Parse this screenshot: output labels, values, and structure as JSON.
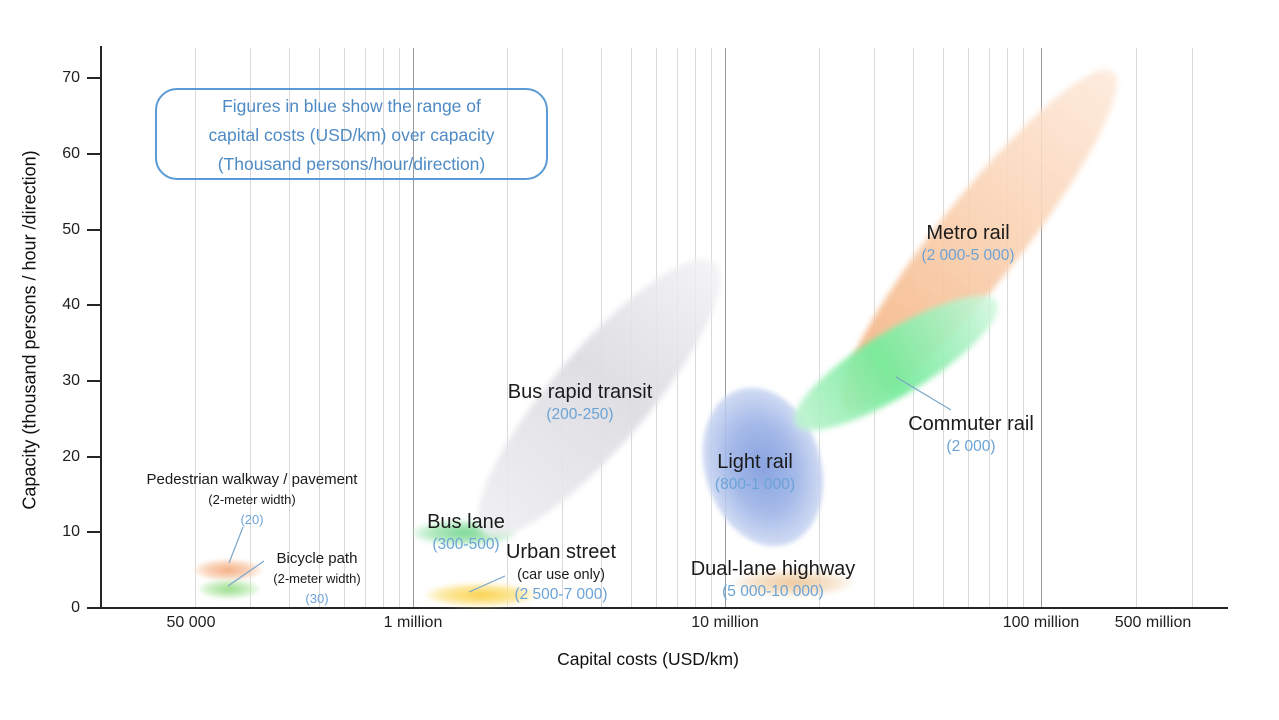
{
  "colors": {
    "accent_blue": "#5B9BD5",
    "metro": "#F5B88A",
    "commuter": "#76EB9B",
    "light_rail": "#829EDE",
    "brt": "#DDDDE2",
    "bus_lane": "#76D590",
    "urban_street": "#FACF43",
    "highway": "#ECC394",
    "pedestrian": "#F4A87A",
    "bicycle": "#94DB84"
  },
  "annotation": {
    "lines": [
      "Figures in blue show the range of",
      "capital costs (USD/km) over capacity",
      "(Thousand persons/hour/direction)"
    ]
  },
  "y_axis": {
    "title": "Capacity (thousand persons / hour /direction)",
    "ticks": [
      "70",
      "60",
      "50",
      "40",
      "30",
      "20",
      "10",
      "0"
    ]
  },
  "x_axis": {
    "title": "Capital costs (USD/km)",
    "ticks": [
      "50 000",
      "1 million",
      "10 million",
      "100 million",
      "500 million"
    ]
  },
  "modes": {
    "metro": {
      "name": "Metro rail",
      "figure": "(2 000-5 000)"
    },
    "commuter": {
      "name": "Commuter rail",
      "figure": "(2 000)"
    },
    "lightrail": {
      "name": "Light rail",
      "figure": "(800-1 000)"
    },
    "brt": {
      "name": "Bus rapid transit",
      "figure": "(200-250)"
    },
    "buslane": {
      "name": "Bus lane",
      "figure": "(300-500)"
    },
    "urban_street": {
      "name": "Urban street",
      "sub": "(car use only)",
      "figure": "(2 500-7 000)"
    },
    "highway": {
      "name": "Dual-lane highway",
      "figure": "(5 000-10 000)"
    },
    "pedestrian": {
      "name": "Pedestrian walkway / pavement",
      "sub": "(2-meter width)",
      "figure": "(20)"
    },
    "bicycle": {
      "name": "Bicycle path",
      "sub": "(2-meter width)",
      "figure": "(30)"
    }
  },
  "chart_data": {
    "type": "scatter",
    "title": "",
    "xlabel": "Capital costs (USD/km)",
    "ylabel": "Capacity (thousand persons / hour /direction)",
    "x_scale": "log",
    "x_tick_labels": [
      "50 000",
      "1 million",
      "10 million",
      "100 million",
      "500 million"
    ],
    "ylim": [
      0,
      70
    ],
    "grid": "vertical-log-minor",
    "note": "Figures in blue show the range of capital costs (USD/km) over capacity (Thousand persons/hour/direction)",
    "series": [
      {
        "name": "Pedestrian walkway / pavement (2-meter width)",
        "figure_usd_per_km_over_capacity": "20",
        "capacity_range_thousand_pphpd": [
          3.5,
          6.5
        ],
        "approx_capital_cost_usd_per_km": [
          200000,
          330000
        ],
        "color": "#F4A87A"
      },
      {
        "name": "Bicycle path (2-meter width)",
        "figure_usd_per_km_over_capacity": "30",
        "capacity_range_thousand_pphpd": [
          1,
          4
        ],
        "approx_capital_cost_usd_per_km": [
          210000,
          320000
        ],
        "color": "#94DB84"
      },
      {
        "name": "Bus lane",
        "figure_usd_per_km_over_capacity": "300-500",
        "capacity_range_thousand_pphpd": [
          8,
          12
        ],
        "approx_capital_cost_usd_per_km": [
          1000000,
          2100000
        ],
        "color": "#76D590"
      },
      {
        "name": "Urban street (car use only)",
        "figure_usd_per_km_over_capacity": "2 500-7 000",
        "capacity_range_thousand_pphpd": [
          0.5,
          3
        ],
        "approx_capital_cost_usd_per_km": [
          1100000,
          2500000
        ],
        "color": "#FACF43"
      },
      {
        "name": "Bus rapid transit",
        "figure_usd_per_km_over_capacity": "200-250",
        "capacity_range_thousand_pphpd": [
          10,
          46
        ],
        "approx_capital_cost_usd_per_km": [
          1700000,
          9000000
        ],
        "color": "#DDDDE2"
      },
      {
        "name": "Light rail",
        "figure_usd_per_km_over_capacity": "800-1 000",
        "capacity_range_thousand_pphpd": [
          8,
          29
        ],
        "approx_capital_cost_usd_per_km": [
          8600000,
          21000000
        ],
        "color": "#829EDE"
      },
      {
        "name": "Dual-lane highway",
        "figure_usd_per_km_over_capacity": "5 000-10 000",
        "capacity_range_thousand_pphpd": [
          1.5,
          5
        ],
        "approx_capital_cost_usd_per_km": [
          11000000,
          26000000
        ],
        "color": "#ECC394"
      },
      {
        "name": "Commuter rail",
        "figure_usd_per_km_over_capacity": "2 000",
        "capacity_range_thousand_pphpd": [
          24,
          40
        ],
        "approx_capital_cost_usd_per_km": [
          17000000,
          72000000
        ],
        "color": "#76EB9B"
      },
      {
        "name": "Metro rail",
        "figure_usd_per_km_over_capacity": "2 000-5 000",
        "capacity_range_thousand_pphpd": [
          26,
          71
        ],
        "approx_capital_cost_usd_per_km": [
          24000000,
          175000000
        ],
        "color": "#F5B88A"
      }
    ]
  }
}
